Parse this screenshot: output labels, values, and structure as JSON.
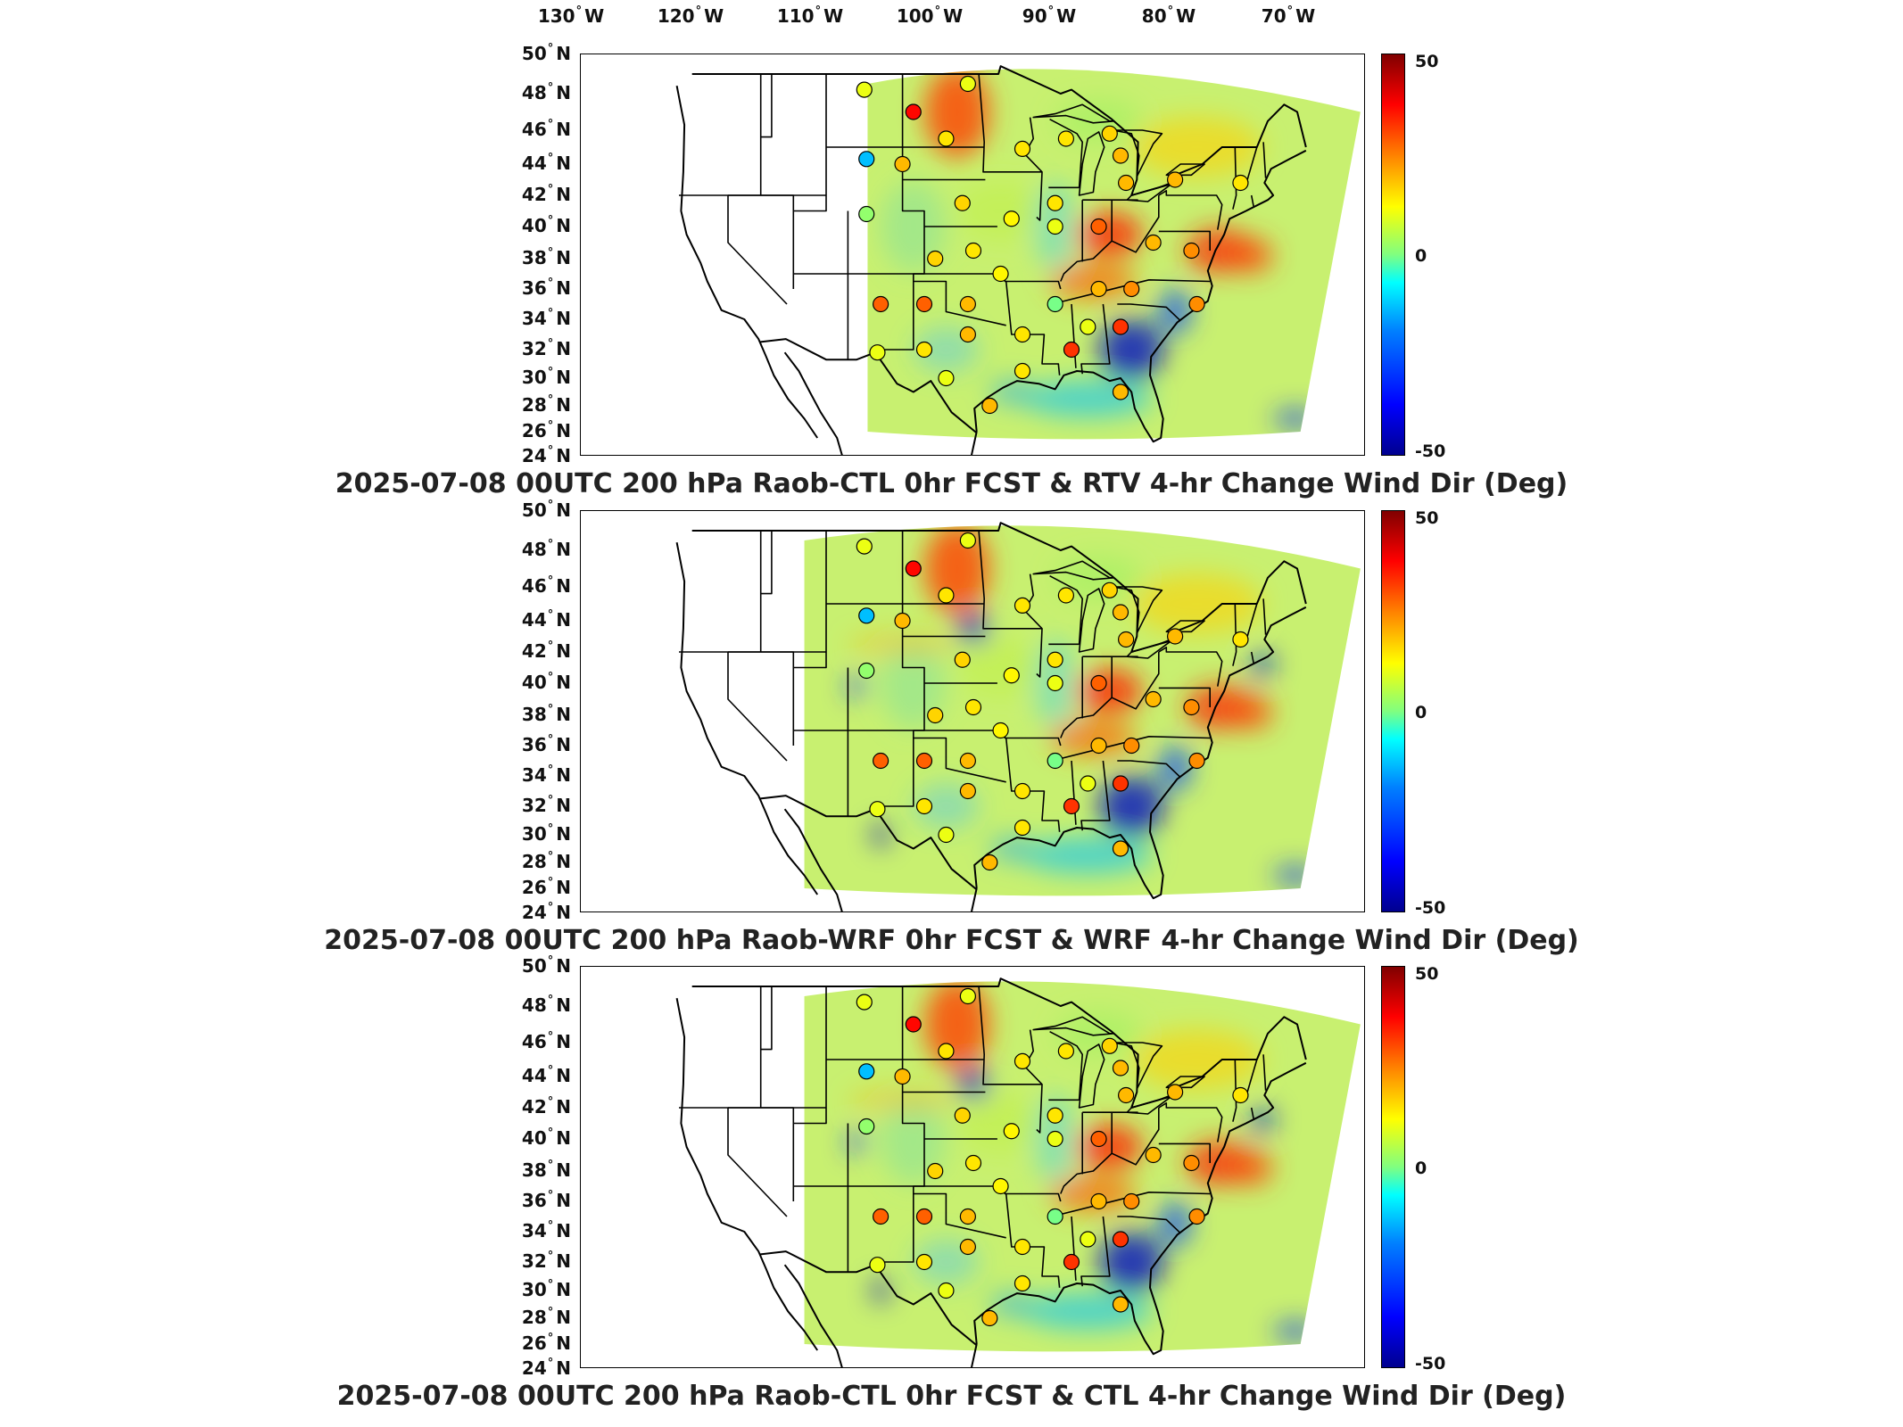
{
  "lon_ticks": [
    {
      "deg": "130",
      "dir": "W"
    },
    {
      "deg": "120",
      "dir": "W"
    },
    {
      "deg": "110",
      "dir": "W"
    },
    {
      "deg": "100",
      "dir": "W"
    },
    {
      "deg": "90",
      "dir": "W"
    },
    {
      "deg": "80",
      "dir": "W"
    },
    {
      "deg": "70",
      "dir": "W"
    }
  ],
  "lat_ticks": [
    {
      "deg": "50",
      "dir": "N"
    },
    {
      "deg": "48",
      "dir": "N"
    },
    {
      "deg": "46",
      "dir": "N"
    },
    {
      "deg": "44",
      "dir": "N"
    },
    {
      "deg": "42",
      "dir": "N"
    },
    {
      "deg": "40",
      "dir": "N"
    },
    {
      "deg": "38",
      "dir": "N"
    },
    {
      "deg": "36",
      "dir": "N"
    },
    {
      "deg": "34",
      "dir": "N"
    },
    {
      "deg": "32",
      "dir": "N"
    },
    {
      "deg": "30",
      "dir": "N"
    },
    {
      "deg": "28",
      "dir": "N"
    },
    {
      "deg": "26",
      "dir": "N"
    },
    {
      "deg": "24",
      "dir": "N"
    }
  ],
  "colorbar": {
    "max": "50",
    "mid": "0",
    "min": "-50",
    "colors": [
      "#00008f",
      "#0000ff",
      "#00ffff",
      "#80ff80",
      "#ffff00",
      "#ff8000",
      "#ff0000",
      "#800000"
    ]
  },
  "panels": [
    {
      "title": "2025-07-08 00UTC 200 hPa Raob-CTL 0hr FCST & RTV 4-hr Change Wind Dir (Deg)"
    },
    {
      "title": "2025-07-08 00UTC 200 hPa Raob-WRF 0hr FCST & WRF 4-hr Change Wind Dir (Deg)"
    },
    {
      "title": "2025-07-08 00UTC 200 hPa Raob-CTL 0hr FCST & CTL 4-hr Change Wind Dir (Deg)"
    }
  ],
  "stations": [
    {
      "lon": -107.5,
      "lat": 48.2,
      "value": 5
    },
    {
      "lon": -103,
      "lat": 47,
      "value": 35
    },
    {
      "lon": -107.3,
      "lat": 44.3,
      "value": -25
    },
    {
      "lon": -107.3,
      "lat": 40.8,
      "value": -5
    },
    {
      "lon": -104,
      "lat": 44,
      "value": 15
    },
    {
      "lon": -100,
      "lat": 45.5,
      "value": 10
    },
    {
      "lon": -98,
      "lat": 48.5,
      "value": 5
    },
    {
      "lon": -93,
      "lat": 44.9,
      "value": 10
    },
    {
      "lon": -89,
      "lat": 45.5,
      "value": 10
    },
    {
      "lon": -85,
      "lat": 45.8,
      "value": 12
    },
    {
      "lon": -84,
      "lat": 44.5,
      "value": 15
    },
    {
      "lon": -83.5,
      "lat": 42.8,
      "value": 15
    },
    {
      "lon": -79,
      "lat": 43,
      "value": 15
    },
    {
      "lon": -73,
      "lat": 42.8,
      "value": 10
    },
    {
      "lon": -98.5,
      "lat": 41.5,
      "value": 12
    },
    {
      "lon": -94,
      "lat": 40.5,
      "value": 8
    },
    {
      "lon": -90,
      "lat": 41.5,
      "value": 10
    },
    {
      "lon": -90,
      "lat": 40,
      "value": 5
    },
    {
      "lon": -86,
      "lat": 40,
      "value": 25
    },
    {
      "lon": -81,
      "lat": 39,
      "value": 15
    },
    {
      "lon": -77.5,
      "lat": 38.5,
      "value": 20
    },
    {
      "lon": -101,
      "lat": 38,
      "value": 12
    },
    {
      "lon": -97.5,
      "lat": 38.5,
      "value": 10
    },
    {
      "lon": -95,
      "lat": 37,
      "value": 8
    },
    {
      "lon": -90,
      "lat": 35,
      "value": -8
    },
    {
      "lon": -86,
      "lat": 36,
      "value": 15
    },
    {
      "lon": -83,
      "lat": 36,
      "value": 20
    },
    {
      "lon": -77,
      "lat": 35,
      "value": 20
    },
    {
      "lon": -106,
      "lat": 35,
      "value": 25
    },
    {
      "lon": -102,
      "lat": 35,
      "value": 25
    },
    {
      "lon": -98,
      "lat": 35,
      "value": 15
    },
    {
      "lon": -93,
      "lat": 33,
      "value": 10
    },
    {
      "lon": -87,
      "lat": 33.5,
      "value": 5
    },
    {
      "lon": -84,
      "lat": 33.5,
      "value": 30
    },
    {
      "lon": -88.5,
      "lat": 32,
      "value": 30
    },
    {
      "lon": -98,
      "lat": 33,
      "value": 15
    },
    {
      "lon": -102,
      "lat": 32,
      "value": 10
    },
    {
      "lon": -106.3,
      "lat": 31.8,
      "value": 5
    },
    {
      "lon": -100,
      "lat": 30,
      "value": 5
    },
    {
      "lon": -93,
      "lat": 30.5,
      "value": 10
    },
    {
      "lon": -96,
      "lat": 28,
      "value": 15
    },
    {
      "lon": -84,
      "lat": 29,
      "value": 15
    }
  ]
}
